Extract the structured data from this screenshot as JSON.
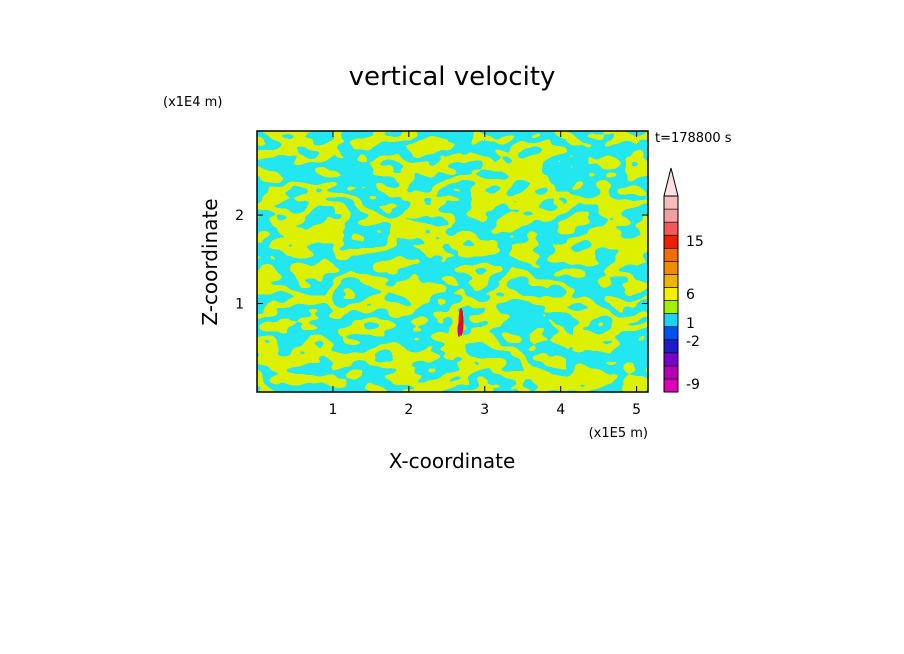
{
  "chart_data": {
    "type": "heatmap",
    "title": "vertical velocity",
    "xlabel": "X-coordinate",
    "ylabel": "Z-coordinate",
    "x_unit": "(x1E5 m)",
    "y_unit": "(x1E4 m)",
    "time_label": "t=178800 s",
    "xlim": [
      0,
      5.15
    ],
    "ylim": [
      0,
      2.95
    ],
    "x_ticks": [
      1,
      2,
      3,
      4,
      5
    ],
    "y_ticks": [
      1,
      2
    ],
    "field_colors": {
      "positive_small": "#dcf000",
      "negative_small": "#22e6f0",
      "strong_updraft": "#e01010",
      "strong_downdraft": "#c000c0"
    },
    "colorbar": {
      "bands": [
        "#dc00b4",
        "#b400b4",
        "#7800c8",
        "#1e1ec8",
        "#0050f0",
        "#1ed2f0",
        "#a0f000",
        "#f0f000",
        "#f0b400",
        "#f08c00",
        "#f06e00",
        "#f01e00",
        "#f05a5a",
        "#f0a0a0",
        "#f5bebe"
      ],
      "arrow_color": "#fde0e0",
      "labels": [
        "15",
        "6",
        "1",
        "-2",
        "-9"
      ]
    }
  }
}
